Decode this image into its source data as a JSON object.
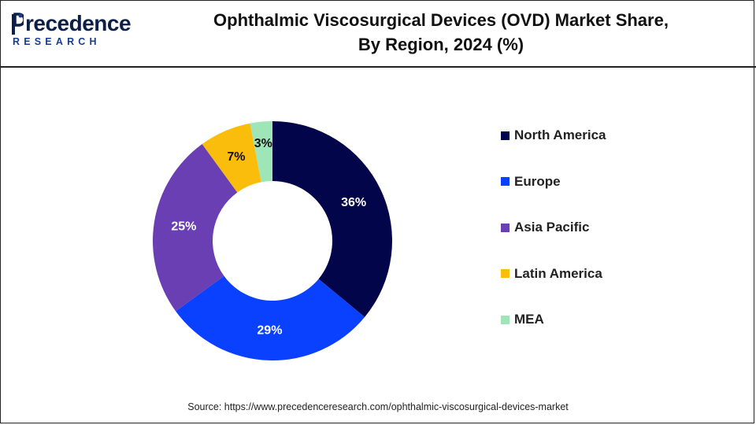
{
  "brand": {
    "logo_main": "recedence",
    "logo_sub": "RESEARCH",
    "logo_color": "#0b1f4a",
    "logo_accent": "#1a3d8f"
  },
  "header": {
    "title_line1": "Ophthalmic Viscosurgical Devices (OVD) Market Share,",
    "title_line2": "By Region, 2024 (%)"
  },
  "chart_data": {
    "type": "pie",
    "subtype": "donut",
    "title": "Ophthalmic Viscosurgical Devices (OVD) Market Share, By Region, 2024 (%)",
    "categories": [
      "North America",
      "Europe",
      "Asia Pacific",
      "Latin America",
      "MEA"
    ],
    "values": [
      36,
      29,
      25,
      7,
      3
    ],
    "labels": [
      "36%",
      "29%",
      "25%",
      "7%",
      "3%"
    ],
    "colors": [
      "#03054a",
      "#0a40ff",
      "#6a3fb3",
      "#fbbd0c",
      "#9ee6b8"
    ],
    "label_colors": [
      "#ffffff",
      "#ffffff",
      "#ffffff",
      "#111111",
      "#111111"
    ],
    "legend_position": "right",
    "start_angle_deg": 0,
    "direction": "clockwise"
  },
  "footer": {
    "source": "Source: https://www.precedenceresearch.com/ophthalmic-viscosurgical-devices-market"
  }
}
